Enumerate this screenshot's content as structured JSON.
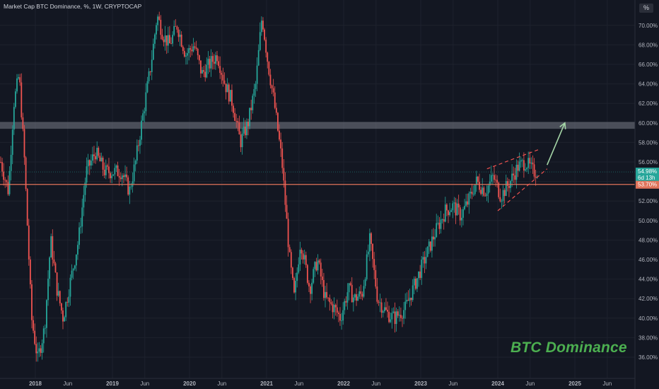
{
  "title": "Market Cap BTC Dominance, %, 1W, CRYPTOCAP",
  "currency_badge": "%",
  "watermark": "BTC Dominance",
  "colors": {
    "background": "#131722",
    "grid": "#1e222d",
    "up": "#26a69a",
    "down": "#ef5350",
    "accent": "#4caf50",
    "support_line": "#e0735a",
    "resistance_zone": "#787b86"
  },
  "chart_data": {
    "type": "candlestick",
    "title": "Market Cap BTC Dominance, %, 1W, CRYPTOCAP",
    "ylabel": "%",
    "ylim": [
      35,
      72
    ],
    "y_ticks": [
      "36.00%",
      "38.00%",
      "40.00%",
      "42.00%",
      "44.00%",
      "46.00%",
      "48.00%",
      "50.00%",
      "52.00%",
      "54.00%",
      "56.00%",
      "58.00%",
      "60.00%",
      "62.00%",
      "64.00%",
      "66.00%",
      "68.00%",
      "70.00%"
    ],
    "x_ticks": [
      {
        "label": "2018",
        "t": 2018.0
      },
      {
        "label": "Jun",
        "t": 2018.42
      },
      {
        "label": "2019",
        "t": 2019.0
      },
      {
        "label": "Jun",
        "t": 2019.42
      },
      {
        "label": "2020",
        "t": 2020.0
      },
      {
        "label": "Jun",
        "t": 2020.42
      },
      {
        "label": "2021",
        "t": 2021.0
      },
      {
        "label": "Jun",
        "t": 2021.42
      },
      {
        "label": "2022",
        "t": 2022.0
      },
      {
        "label": "Jun",
        "t": 2022.42
      },
      {
        "label": "2023",
        "t": 2023.0
      },
      {
        "label": "Jun",
        "t": 2023.42
      },
      {
        "label": "2024",
        "t": 2024.0
      },
      {
        "label": "Jun",
        "t": 2024.42
      },
      {
        "label": "2025",
        "t": 2025.0
      },
      {
        "label": "Jun",
        "t": 2025.42
      }
    ],
    "xlim": [
      2017.55,
      2025.8
    ],
    "keypoints": [
      [
        2017.55,
        56.0
      ],
      [
        2017.65,
        53.0
      ],
      [
        2017.72,
        62.0
      ],
      [
        2017.79,
        65.0
      ],
      [
        2017.86,
        56.0
      ],
      [
        2017.95,
        40.0
      ],
      [
        2018.03,
        35.8
      ],
      [
        2018.12,
        39.0
      ],
      [
        2018.2,
        48.0
      ],
      [
        2018.28,
        43.0
      ],
      [
        2018.36,
        40.0
      ],
      [
        2018.46,
        44.0
      ],
      [
        2018.56,
        48.0
      ],
      [
        2018.66,
        55.0
      ],
      [
        2018.78,
        57.0
      ],
      [
        2018.9,
        55.0
      ],
      [
        2019.0,
        55.0
      ],
      [
        2019.12,
        55.0
      ],
      [
        2019.22,
        53.0
      ],
      [
        2019.3,
        56.0
      ],
      [
        2019.4,
        61.0
      ],
      [
        2019.5,
        66.0
      ],
      [
        2019.58,
        71.0
      ],
      [
        2019.66,
        69.0
      ],
      [
        2019.74,
        68.0
      ],
      [
        2019.84,
        70.0
      ],
      [
        2019.95,
        67.0
      ],
      [
        2020.06,
        68.0
      ],
      [
        2020.16,
        65.0
      ],
      [
        2020.26,
        66.0
      ],
      [
        2020.36,
        67.0
      ],
      [
        2020.46,
        64.0
      ],
      [
        2020.56,
        62.0
      ],
      [
        2020.66,
        58.0
      ],
      [
        2020.76,
        60.0
      ],
      [
        2020.86,
        64.0
      ],
      [
        2020.94,
        71.0
      ],
      [
        2021.02,
        66.0
      ],
      [
        2021.1,
        62.0
      ],
      [
        2021.2,
        56.0
      ],
      [
        2021.3,
        46.0
      ],
      [
        2021.36,
        42.0
      ],
      [
        2021.44,
        48.0
      ],
      [
        2021.56,
        43.0
      ],
      [
        2021.66,
        46.0
      ],
      [
        2021.76,
        42.0
      ],
      [
        2021.88,
        41.0
      ],
      [
        2021.96,
        40.0
      ],
      [
        2022.06,
        43.0
      ],
      [
        2022.14,
        42.0
      ],
      [
        2022.24,
        42.5
      ],
      [
        2022.34,
        48.0
      ],
      [
        2022.44,
        42.0
      ],
      [
        2022.56,
        40.5
      ],
      [
        2022.66,
        40.0
      ],
      [
        2022.8,
        41.0
      ],
      [
        2022.9,
        43.0
      ],
      [
        2023.0,
        45.0
      ],
      [
        2023.1,
        47.0
      ],
      [
        2023.2,
        49.0
      ],
      [
        2023.32,
        51.0
      ],
      [
        2023.42,
        51.5
      ],
      [
        2023.52,
        50.5
      ],
      [
        2023.62,
        52.0
      ],
      [
        2023.72,
        54.0
      ],
      [
        2023.84,
        53.0
      ],
      [
        2023.94,
        54.5
      ],
      [
        2024.04,
        52.5
      ],
      [
        2024.16,
        54.0
      ],
      [
        2024.26,
        55.5
      ],
      [
        2024.36,
        56.0
      ],
      [
        2024.46,
        55.0
      ],
      [
        2024.52,
        55.0
      ]
    ],
    "current_value": {
      "label": "54.98%",
      "value": 54.98,
      "countdown": "6d 13h"
    },
    "horizontal_level": {
      "label": "53.70%",
      "value": 53.7
    },
    "resistance_zone": {
      "from": 59.4,
      "to": 60.1
    },
    "wedge": {
      "upper": [
        [
          2023.86,
          55.3
        ],
        [
          2024.54,
          57.3
        ]
      ],
      "lower": [
        [
          2024.0,
          51.0
        ],
        [
          2024.64,
          55.3
        ]
      ]
    },
    "arrow": {
      "from": [
        2024.64,
        55.7
      ],
      "to": [
        2024.87,
        60.0
      ]
    }
  }
}
